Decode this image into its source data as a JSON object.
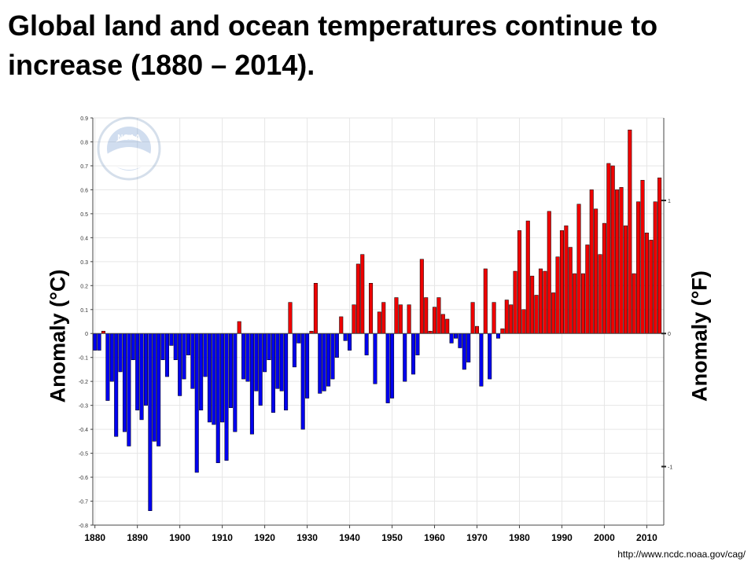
{
  "page": {
    "title_line1": "Global land and ocean temperatures continue to",
    "title_line2": "increase (1880 – 2014).",
    "source": "http://www.ncdc.noaa.gov/cag/",
    "logo_text": "NOAA"
  },
  "chart_data": {
    "type": "bar",
    "ylabel": "Anomaly (°C)",
    "ylabel_right": "Anomaly (°F)",
    "ylim": [
      -0.8,
      0.9
    ],
    "yticks": [
      0.9,
      0.8,
      0.7,
      0.6,
      0.5,
      0.4,
      0.3,
      0.2,
      0.1,
      0,
      -0.1,
      -0.2,
      -0.3,
      -0.4,
      -0.5,
      -0.6,
      -0.7,
      -0.8
    ],
    "ytick_labels": [
      "0.9",
      "0.8",
      "0.7",
      "0.6",
      "0.5",
      "0.4",
      "0.3",
      "0.2",
      "0.1",
      "0",
      "-0.1",
      "-0.2",
      "-0.3",
      "-0.4",
      "-0.5",
      "-0.6",
      "-0.7",
      "-0.8"
    ],
    "right_ticks": [
      1,
      0,
      -1
    ],
    "right_tick_labels": [
      "1",
      "0",
      "-1"
    ],
    "xticks": [
      1880,
      1890,
      1900,
      1910,
      1920,
      1930,
      1940,
      1950,
      1960,
      1970,
      1980,
      1990,
      2000,
      2010
    ],
    "xlim": [
      1880,
      2014
    ],
    "grid": true,
    "colors": {
      "positive": "#ee0000",
      "negative": "#0000ee"
    },
    "years_start": 1880,
    "values": [
      -0.07,
      -0.07,
      0.01,
      -0.28,
      -0.2,
      -0.43,
      -0.16,
      -0.41,
      -0.47,
      -0.11,
      -0.32,
      -0.36,
      -0.3,
      -0.74,
      -0.45,
      -0.47,
      -0.11,
      -0.18,
      -0.05,
      -0.11,
      -0.26,
      -0.19,
      -0.09,
      -0.23,
      -0.58,
      -0.32,
      -0.18,
      -0.37,
      -0.38,
      -0.54,
      -0.37,
      -0.53,
      -0.31,
      -0.41,
      0.05,
      -0.19,
      -0.2,
      -0.42,
      -0.24,
      -0.3,
      -0.16,
      -0.11,
      -0.33,
      -0.23,
      -0.24,
      -0.32,
      0.13,
      -0.14,
      -0.04,
      -0.4,
      -0.27,
      0.01,
      0.21,
      -0.25,
      -0.24,
      -0.22,
      -0.19,
      -0.1,
      0.07,
      -0.03,
      -0.07,
      0.12,
      0.29,
      0.33,
      -0.09,
      0.21,
      -0.21,
      0.09,
      0.13,
      -0.29,
      -0.27,
      0.15,
      0.12,
      -0.2,
      0.12,
      -0.17,
      -0.09,
      0.31,
      0.15,
      0.01,
      0.11,
      0.15,
      0.08,
      0.06,
      -0.04,
      -0.02,
      -0.06,
      -0.15,
      -0.12,
      0.13,
      0.03,
      -0.22,
      0.27,
      -0.19,
      0.13,
      -0.02,
      0.02,
      0.14,
      0.12,
      0.26,
      0.43,
      0.1,
      0.47,
      0.24,
      0.16,
      0.27,
      0.26,
      0.51,
      0.17,
      0.32,
      0.43,
      0.45,
      0.36,
      0.25,
      0.54,
      0.25,
      0.37,
      0.6,
      0.52,
      0.33,
      0.46,
      0.71,
      0.7,
      0.6,
      0.61,
      0.45,
      0.85,
      0.25,
      0.55,
      0.64,
      0.42,
      0.39,
      0.55,
      0.65
    ]
  }
}
